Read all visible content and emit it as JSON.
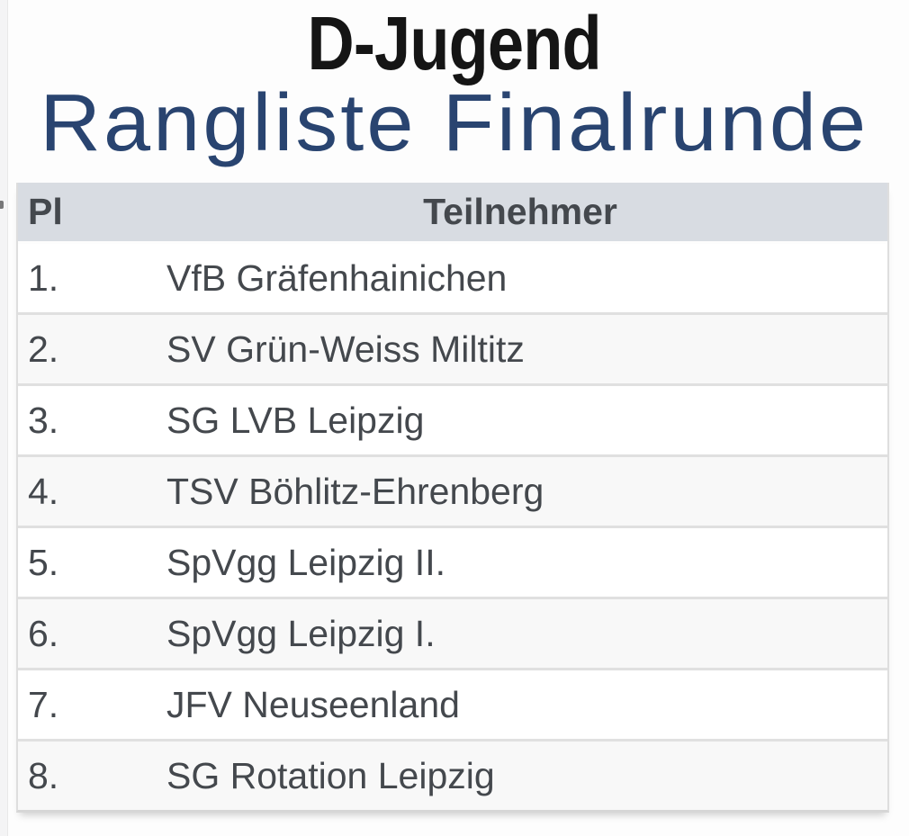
{
  "header": {
    "title": "D-Jugend",
    "subtitle": "Rangliste Finalrunde"
  },
  "table": {
    "columns": {
      "pl": "Pl",
      "teilnehmer": "Teilnehmer"
    },
    "rows": [
      {
        "pl": "1.",
        "teilnehmer": "VfB Gräfenhainichen"
      },
      {
        "pl": "2.",
        "teilnehmer": "SV Grün-Weiss Miltitz"
      },
      {
        "pl": "3.",
        "teilnehmer": "SG LVB Leipzig"
      },
      {
        "pl": "4.",
        "teilnehmer": "TSV Böhlitz-Ehrenberg"
      },
      {
        "pl": "5.",
        "teilnehmer": "SpVgg Leipzig II."
      },
      {
        "pl": "6.",
        "teilnehmer": "SpVgg Leipzig I."
      },
      {
        "pl": "7.",
        "teilnehmer": "JFV Neuseenland"
      },
      {
        "pl": "8.",
        "teilnehmer": "SG Rotation Leipzig"
      }
    ]
  },
  "colors": {
    "title": "#151515",
    "subtitle": "#294470",
    "table_header_bg": "#d8dce2",
    "text": "#44484d",
    "row_alt_bg": "#f8f8f8",
    "separator": "#e0e0e0"
  }
}
